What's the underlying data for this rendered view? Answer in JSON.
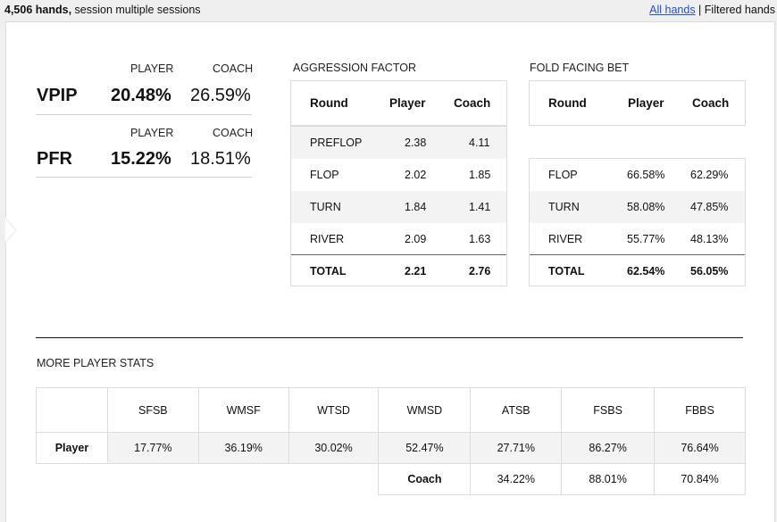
{
  "topbar": {
    "hands": "4,506 hands,",
    "session": " session multiple sessions",
    "all_hands": "All hands",
    "separator": " | ",
    "filtered_hands": "Filtered hands"
  },
  "summary": {
    "player_header": "PLAYER",
    "coach_header": "COACH",
    "vpip": {
      "label": "VPIP",
      "player": "20.48%",
      "coach": "26.59%"
    },
    "pfr": {
      "label": "PFR",
      "player": "15.22%",
      "coach": "18.51%"
    }
  },
  "aggression": {
    "title": "AGGRESSION FACTOR",
    "headers": {
      "round": "Round",
      "player": "Player",
      "coach": "Coach"
    },
    "rows": [
      {
        "round": "PREFLOP",
        "player": "2.38",
        "coach": "4.11"
      },
      {
        "round": "FLOP",
        "player": "2.02",
        "coach": "1.85"
      },
      {
        "round": "TURN",
        "player": "1.84",
        "coach": "1.41"
      },
      {
        "round": "RIVER",
        "player": "2.09",
        "coach": "1.63"
      }
    ],
    "total": {
      "round": "TOTAL",
      "player": "2.21",
      "coach": "2.76"
    }
  },
  "fold_facing_bet": {
    "title": "FOLD FACING BET",
    "headers": {
      "round": "Round",
      "player": "Player",
      "coach": "Coach"
    },
    "rows": [
      {
        "round": "FLOP",
        "player": "66.58%",
        "coach": "62.29%"
      },
      {
        "round": "TURN",
        "player": "58.08%",
        "coach": "47.85%"
      },
      {
        "round": "RIVER",
        "player": "55.77%",
        "coach": "48.13%"
      }
    ],
    "total": {
      "round": "TOTAL",
      "player": "62.54%",
      "coach": "56.05%"
    }
  },
  "more_stats": {
    "title": "MORE PLAYER STATS",
    "columns": [
      "SFSB",
      "WMSF",
      "WTSD",
      "WMSD",
      "ATSB",
      "FSBS",
      "FBBS"
    ],
    "player_label": "Player",
    "player_values": [
      "17.77%",
      "36.19%",
      "30.02%",
      "52.47%",
      "27.71%",
      "86.27%",
      "76.64%"
    ],
    "coach_label": "Coach",
    "coach_values": [
      "34.22%",
      "88.01%",
      "70.84%"
    ]
  }
}
